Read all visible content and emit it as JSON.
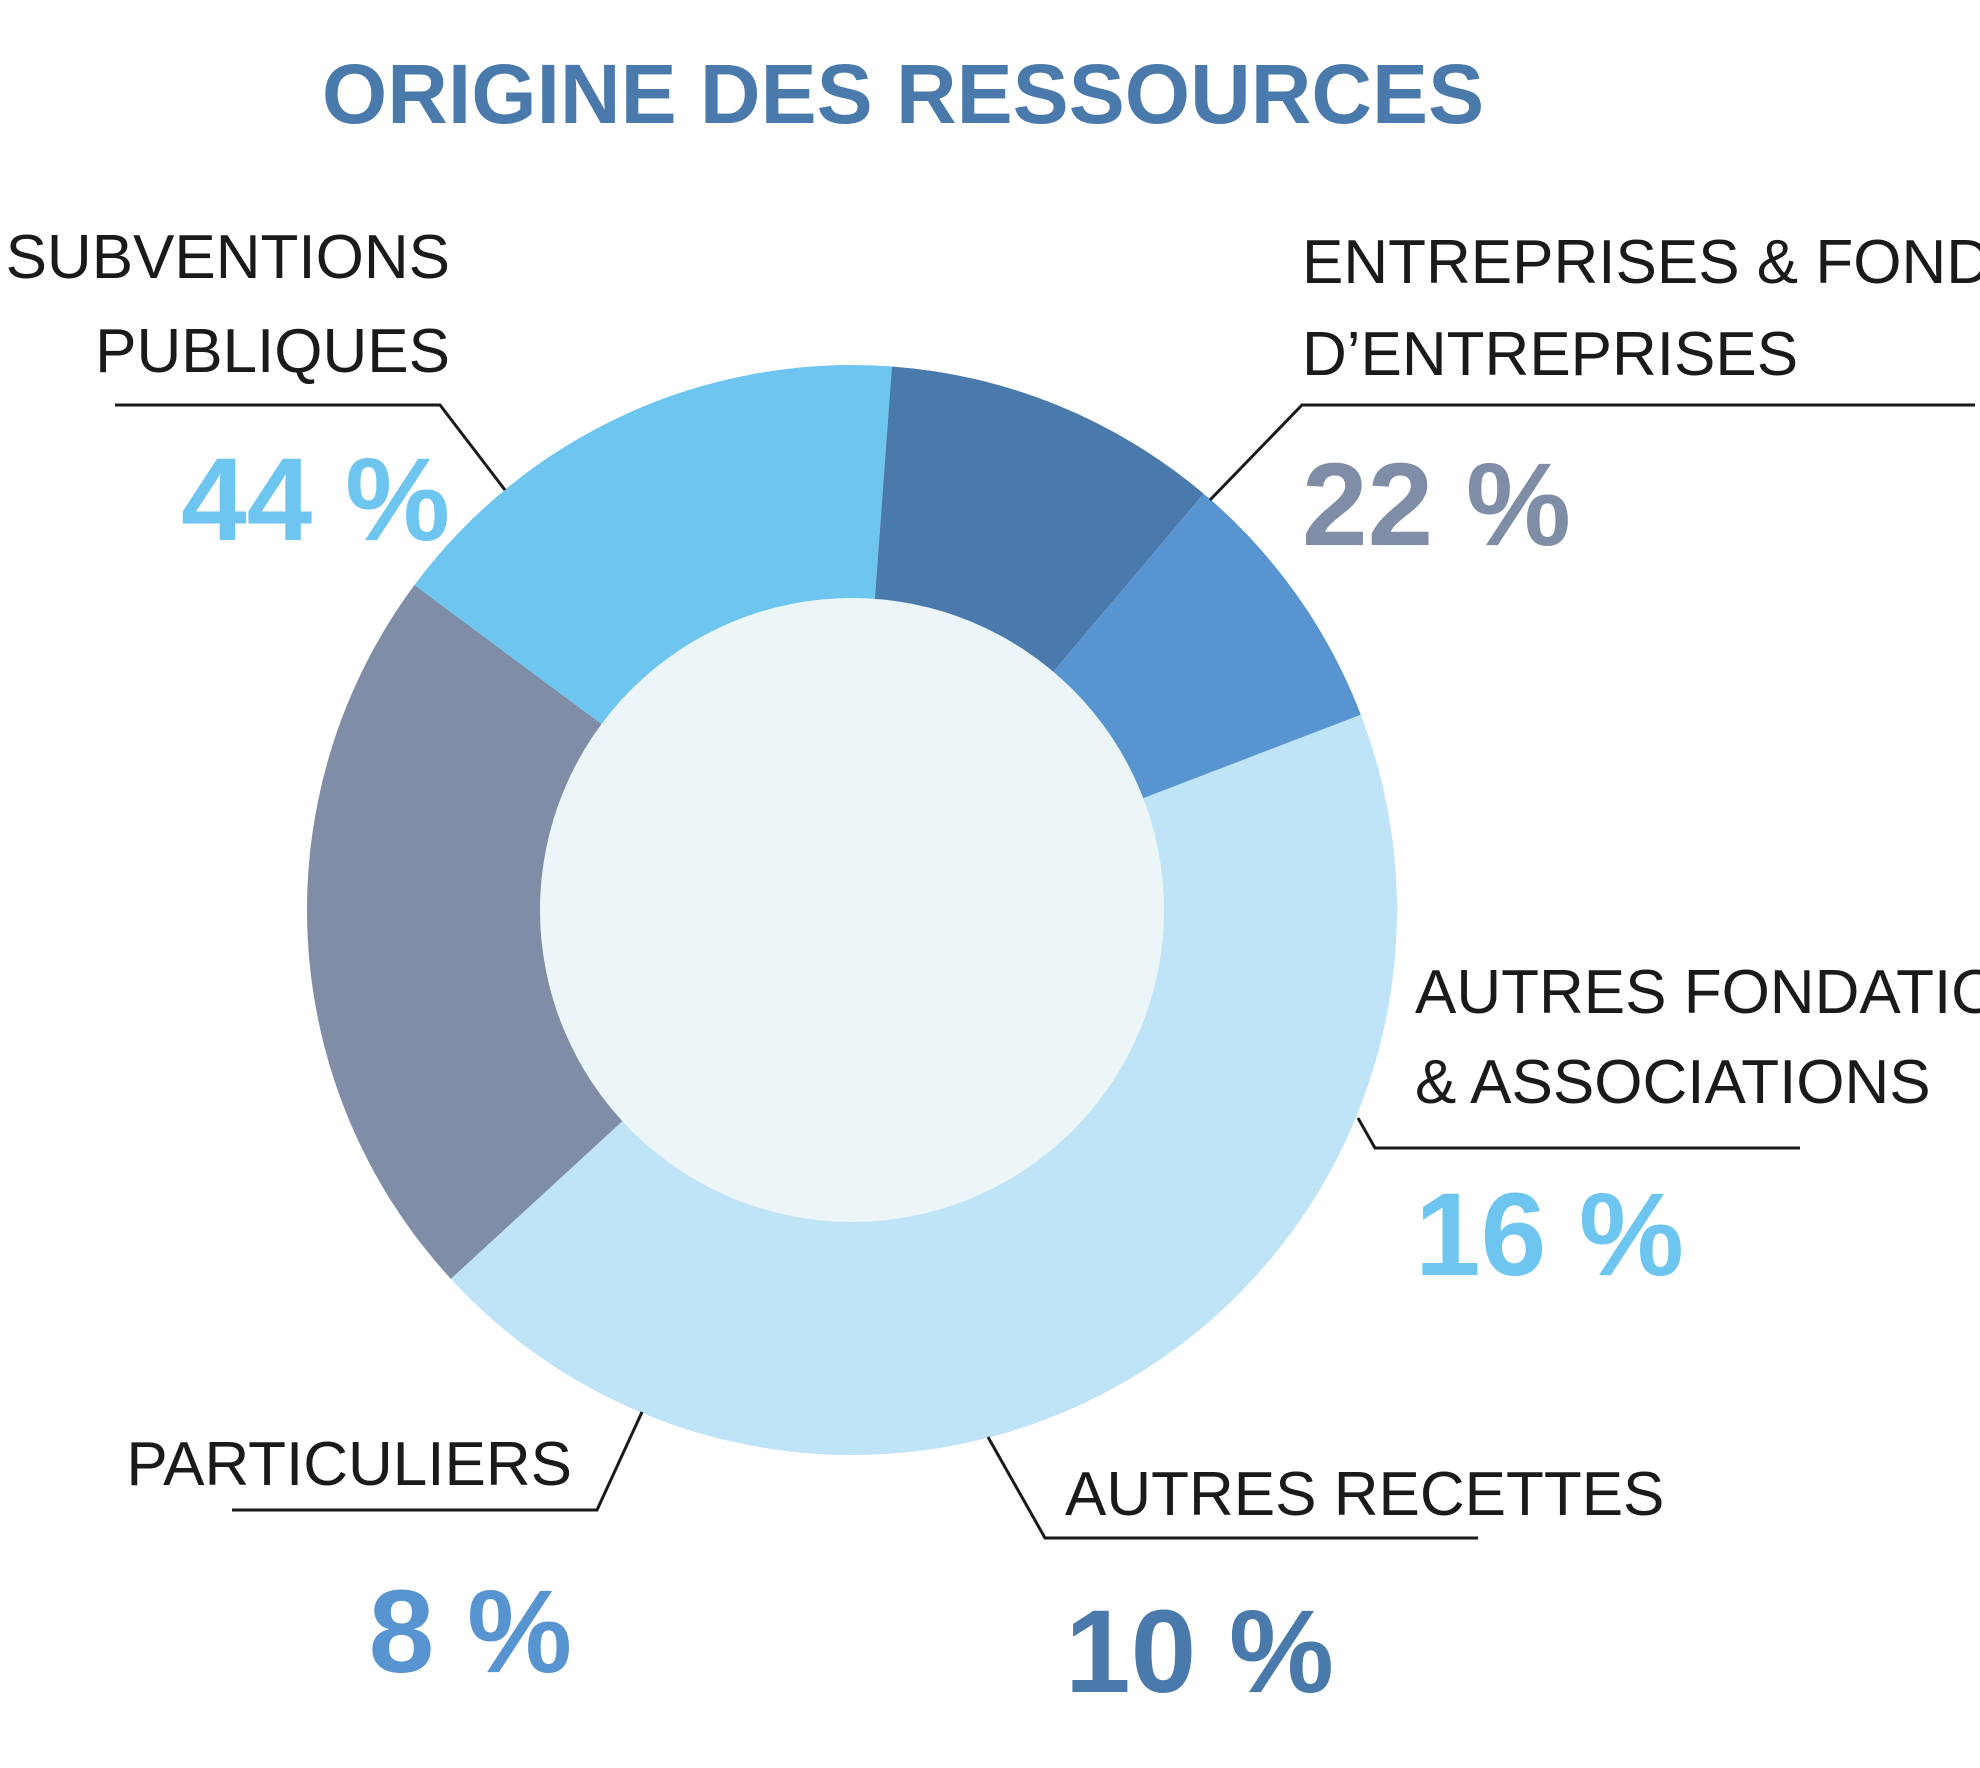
{
  "chart_data": {
    "type": "pie",
    "variant": "donut",
    "title": "ORIGINE DES RESSOURCES",
    "title_color": "#4a7aac",
    "center_color": "#ecf6f8",
    "slices": [
      {
        "label_lines": [
          "SUBVENTIONS",
          "PUBLIQUES"
        ],
        "value": 44,
        "display": "44 %",
        "color": "#bfe3f7",
        "text_color": "#6ec6f0"
      },
      {
        "label_lines": [
          "ENTREPRISES & FONDATIONS",
          "D’ENTREPRISES"
        ],
        "value": 22,
        "display": "22 %",
        "color": "#7f8da6",
        "text_color": "#7f8da6"
      },
      {
        "label_lines": [
          "AUTRES FONDATIONS",
          "& ASSOCIATIONS"
        ],
        "value": 16,
        "display": "16 %",
        "color": "#6ec6f0",
        "text_color": "#6ec6f0"
      },
      {
        "label_lines": [
          "AUTRES RECETTES"
        ],
        "value": 10,
        "display": "10 %",
        "color": "#4a7aac",
        "text_color": "#4a7aac"
      },
      {
        "label_lines": [
          "PARTICULIERS"
        ],
        "value": 8,
        "display": "8 %",
        "color": "#5894d0",
        "text_color": "#5894d0"
      }
    ]
  }
}
